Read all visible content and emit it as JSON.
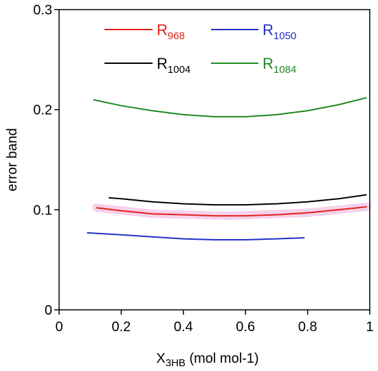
{
  "chart_data": {
    "type": "line",
    "title": "",
    "xlabel": {
      "main": "X",
      "sub": "3HB",
      "rest": " (mol mol-1)"
    },
    "ylabel": "error band",
    "xlim": [
      0,
      1
    ],
    "ylim": [
      0,
      0.3
    ],
    "xticks": [
      0,
      0.2,
      0.4,
      0.6,
      0.8,
      1
    ],
    "xtick_labels": [
      "0",
      "0.2",
      "0.4",
      "0.6",
      "0.8",
      "1"
    ],
    "yticks": [
      0,
      0.1,
      0.2,
      0.3
    ],
    "ytick_labels": [
      "0",
      "0.1",
      "0.2",
      "0.3"
    ],
    "grid": false,
    "legend_position": "top",
    "series": [
      {
        "name": {
          "main": "R",
          "sub": "968"
        },
        "color": "#e32119",
        "x": [
          0.12,
          0.2,
          0.3,
          0.4,
          0.5,
          0.55,
          0.6,
          0.7,
          0.8,
          0.9,
          0.99
        ],
        "y": [
          0.102,
          0.099,
          0.096,
          0.095,
          0.094,
          0.094,
          0.094,
          0.095,
          0.097,
          0.1,
          0.103
        ]
      },
      {
        "name": {
          "main": "R",
          "sub": "1050"
        },
        "color": "#1f2fc9",
        "x": [
          0.09,
          0.2,
          0.3,
          0.4,
          0.5,
          0.55,
          0.6,
          0.7,
          0.79
        ],
        "y": [
          0.077,
          0.075,
          0.073,
          0.071,
          0.07,
          0.07,
          0.07,
          0.071,
          0.072
        ]
      },
      {
        "name": {
          "main": "R",
          "sub": "1004"
        },
        "color": "#000000",
        "x": [
          0.16,
          0.2,
          0.3,
          0.4,
          0.5,
          0.55,
          0.6,
          0.7,
          0.8,
          0.9,
          0.99
        ],
        "y": [
          0.112,
          0.111,
          0.108,
          0.106,
          0.105,
          0.105,
          0.105,
          0.106,
          0.108,
          0.111,
          0.115
        ]
      },
      {
        "name": {
          "main": "R",
          "sub": "1084"
        },
        "color": "#1e8a1e",
        "x": [
          0.11,
          0.2,
          0.3,
          0.4,
          0.5,
          0.55,
          0.6,
          0.7,
          0.8,
          0.9,
          0.99
        ],
        "y": [
          0.21,
          0.204,
          0.199,
          0.195,
          0.193,
          0.193,
          0.193,
          0.195,
          0.199,
          0.205,
          0.212
        ]
      }
    ],
    "highlight_band": {
      "color": "#f5c6e6",
      "x": [
        0.12,
        0.3,
        0.55,
        0.8,
        0.99
      ],
      "y": [
        0.102,
        0.096,
        0.094,
        0.097,
        0.103
      ]
    }
  }
}
